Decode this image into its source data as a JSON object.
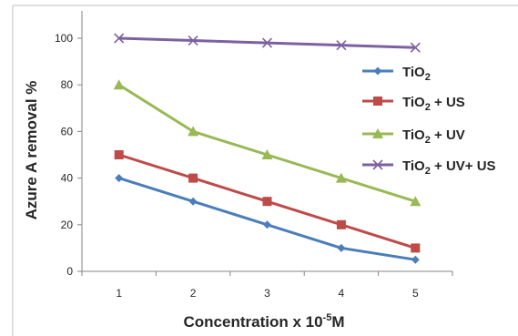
{
  "chart_data": {
    "type": "line",
    "title": "",
    "xlabel": "Concentration x 10",
    "xlabel_sup": "-5",
    "xlabel_tail": "M",
    "ylabel": "Azure A removal %",
    "categories": [
      "1",
      "2",
      "3",
      "4",
      "5"
    ],
    "yticks": [
      "0",
      "20",
      "40",
      "60",
      "80",
      "100"
    ],
    "ylim": [
      0,
      100
    ],
    "grid": false,
    "legend_position": "right",
    "series": [
      {
        "name_main": "TiO",
        "name_sub": "2",
        "name_tail": "",
        "color": "#4a7ebb",
        "marker": "diamond",
        "values": [
          40,
          30,
          20,
          10,
          5
        ]
      },
      {
        "name_main": "TiO",
        "name_sub": "2",
        "name_tail": " + US",
        "color": "#be4b48",
        "marker": "square",
        "values": [
          50,
          40,
          30,
          20,
          10
        ]
      },
      {
        "name_main": "TiO",
        "name_sub": "2",
        "name_tail": " + UV",
        "color": "#98b954",
        "marker": "triangle",
        "values": [
          80,
          60,
          50,
          40,
          30
        ]
      },
      {
        "name_main": "TiO",
        "name_sub": "2",
        "name_tail": " + UV+ US",
        "color": "#7d60a0",
        "marker": "x",
        "values": [
          100,
          99,
          98,
          97,
          96
        ]
      }
    ]
  }
}
